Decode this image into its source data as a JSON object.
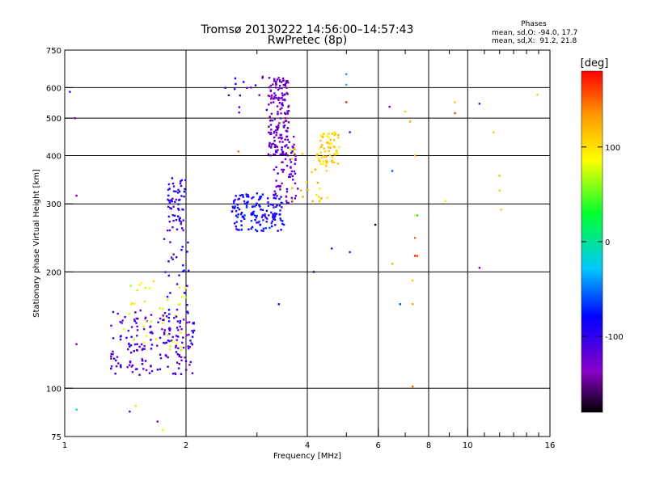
{
  "chart_data": {
    "type": "scatter",
    "title": "Tromsø 20130222 14:56:00–14:57:43",
    "subtitle": "RwPretec (8p)",
    "xlabel": "Frequency [MHz]",
    "ylabel": "Stationary phase Virtual Height [km]",
    "x_scale": "log",
    "y_scale": "log",
    "xlim": [
      1,
      16
    ],
    "ylim": [
      75,
      750
    ],
    "x_ticks": [
      1,
      2,
      4,
      6,
      8,
      10,
      16
    ],
    "x_tick_labels": [
      "1",
      "2",
      "4",
      "6",
      "8",
      "10",
      "16"
    ],
    "x_minor_ticks": [
      3,
      5,
      7,
      9,
      11,
      12,
      13,
      14,
      15
    ],
    "x_gridlines": [
      2,
      4,
      6,
      8,
      10
    ],
    "y_ticks": [
      75,
      100,
      200,
      300,
      400,
      500,
      600,
      750
    ],
    "y_tick_labels": [
      "75",
      "100",
      "200",
      "300",
      "400",
      "500",
      "600",
      "750"
    ],
    "y_gridlines": [
      100,
      200,
      300,
      400,
      500,
      600
    ],
    "grid": true,
    "stats": {
      "heading": "Phases",
      "line_o": "mean, sd,O: -94.0, 17.7",
      "line_x": "mean, sd,X:  91.2, 21.8"
    },
    "colorbar": {
      "unit": "[deg]",
      "range": [
        -180,
        180
      ],
      "ticks": [
        100,
        0,
        -100
      ],
      "tick_labels": [
        "100",
        "0",
        "-100"
      ],
      "colormap": "rainbow-black-to-red"
    },
    "clusters": [
      {
        "x_range": [
          1.3,
          2.1
        ],
        "y_range": [
          108,
          160
        ],
        "phase": -110,
        "count": 180
      },
      {
        "x_range": [
          1.4,
          2.0
        ],
        "y_range": [
          125,
          190
        ],
        "phase": 80,
        "count": 40
      },
      {
        "x_range": [
          1.75,
          2.05
        ],
        "y_range": [
          150,
          260
        ],
        "phase": -95,
        "count": 30
      },
      {
        "x_range": [
          1.8,
          2.0
        ],
        "y_range": [
          255,
          350
        ],
        "phase": -100,
        "count": 60
      },
      {
        "x_range": [
          2.6,
          3.5
        ],
        "y_range": [
          255,
          320
        ],
        "phase": -85,
        "count": 150
      },
      {
        "x_range": [
          3.2,
          3.6
        ],
        "y_range": [
          400,
          640
        ],
        "phase": -130,
        "count": 160
      },
      {
        "x_range": [
          3.3,
          3.8
        ],
        "y_range": [
          300,
          450
        ],
        "phase": -120,
        "count": 70
      },
      {
        "x_range": [
          4.3,
          4.8
        ],
        "y_range": [
          380,
          460
        ],
        "phase": 105,
        "count": 60
      },
      {
        "x_range": [
          3.6,
          4.5
        ],
        "y_range": [
          300,
          420
        ],
        "phase": 110,
        "count": 30
      },
      {
        "x_range": [
          2.5,
          3.2
        ],
        "y_range": [
          500,
          640
        ],
        "phase": -105,
        "count": 14
      }
    ],
    "points": [
      {
        "x": 1.03,
        "y": 585,
        "phase": -110
      },
      {
        "x": 1.06,
        "y": 500,
        "phase": -130
      },
      {
        "x": 1.07,
        "y": 315,
        "phase": -120
      },
      {
        "x": 1.07,
        "y": 130,
        "phase": -130
      },
      {
        "x": 1.07,
        "y": 88,
        "phase": -20
      },
      {
        "x": 1.5,
        "y": 90,
        "phase": 100
      },
      {
        "x": 1.45,
        "y": 87,
        "phase": -110
      },
      {
        "x": 1.7,
        "y": 82,
        "phase": -140
      },
      {
        "x": 1.75,
        "y": 78,
        "phase": 90
      },
      {
        "x": 2.7,
        "y": 410,
        "phase": 150
      },
      {
        "x": 2.9,
        "y": 600,
        "phase": -130
      },
      {
        "x": 3.1,
        "y": 640,
        "phase": -150
      },
      {
        "x": 3.4,
        "y": 165,
        "phase": -90
      },
      {
        "x": 4.15,
        "y": 200,
        "phase": -160
      },
      {
        "x": 4.6,
        "y": 230,
        "phase": -110
      },
      {
        "x": 5.1,
        "y": 225,
        "phase": -120
      },
      {
        "x": 5.0,
        "y": 650,
        "phase": -40
      },
      {
        "x": 5.0,
        "y": 610,
        "phase": -30
      },
      {
        "x": 5.0,
        "y": 550,
        "phase": 170
      },
      {
        "x": 5.1,
        "y": 460,
        "phase": -110
      },
      {
        "x": 5.9,
        "y": 265,
        "phase": -175
      },
      {
        "x": 6.4,
        "y": 535,
        "phase": -120
      },
      {
        "x": 6.5,
        "y": 365,
        "phase": -60
      },
      {
        "x": 6.5,
        "y": 210,
        "phase": 120
      },
      {
        "x": 6.8,
        "y": 165,
        "phase": -60
      },
      {
        "x": 7.0,
        "y": 520,
        "phase": 110
      },
      {
        "x": 7.2,
        "y": 490,
        "phase": 130
      },
      {
        "x": 7.4,
        "y": 400,
        "phase": 120
      },
      {
        "x": 7.4,
        "y": 280,
        "phase": 90
      },
      {
        "x": 7.5,
        "y": 280,
        "phase": -10
      },
      {
        "x": 7.4,
        "y": 245,
        "phase": 150
      },
      {
        "x": 7.4,
        "y": 220,
        "phase": 170
      },
      {
        "x": 7.5,
        "y": 220,
        "phase": 160
      },
      {
        "x": 7.3,
        "y": 190,
        "phase": 110
      },
      {
        "x": 7.3,
        "y": 165,
        "phase": 130
      },
      {
        "x": 7.3,
        "y": 101,
        "phase": 150
      },
      {
        "x": 8.8,
        "y": 305,
        "phase": 100
      },
      {
        "x": 9.3,
        "y": 550,
        "phase": 110
      },
      {
        "x": 9.3,
        "y": 515,
        "phase": 160
      },
      {
        "x": 10.7,
        "y": 545,
        "phase": -120
      },
      {
        "x": 10.7,
        "y": 205,
        "phase": -120
      },
      {
        "x": 11.6,
        "y": 460,
        "phase": 110
      },
      {
        "x": 12.0,
        "y": 355,
        "phase": 120
      },
      {
        "x": 12.0,
        "y": 325,
        "phase": 110
      },
      {
        "x": 12.1,
        "y": 290,
        "phase": 110
      },
      {
        "x": 14.9,
        "y": 575,
        "phase": 110
      }
    ]
  }
}
